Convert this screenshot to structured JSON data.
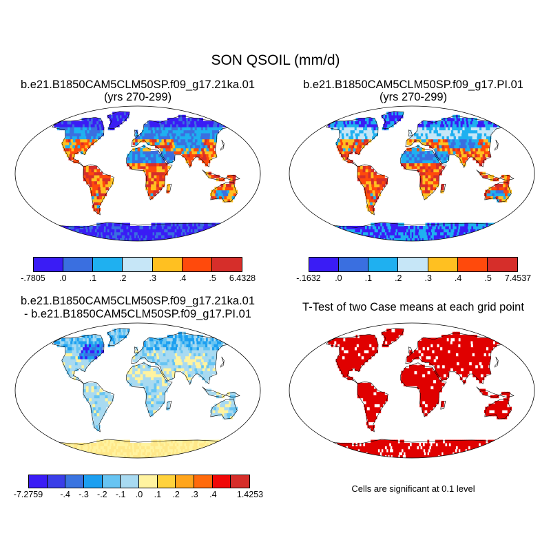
{
  "main_title": "SON QSOIL (mm/d)",
  "panels": {
    "top_left": {
      "title_line1": "b.e21.B1850CAM5CLM50SP.f09_g17.21ka.01",
      "title_line2": "(yrs 270-299)",
      "variant": "21ka"
    },
    "top_right": {
      "title_line1": "b.e21.B1850CAM5CLM50SP.f09_g17.PI.01",
      "title_line2": "(yrs 270-299)",
      "variant": "pi"
    },
    "bottom_left": {
      "title_line1": "b.e21.B1850CAM5CLM50SP.f09_g17.21ka.01",
      "title_line2": "- b.e21.B1850CAM5CLM50SP.f09_g17.PI.01",
      "variant": "diff"
    },
    "bottom_right": {
      "title_line1": "T-Test of two Case means at each grid point",
      "variant": "ttest",
      "note": "Cells are significant at 0.1 level"
    }
  },
  "colorbars": {
    "top_left": {
      "colors": [
        "#3a1cf5",
        "#3a6fe0",
        "#1fb0f0",
        "#c6e6f7",
        "#ffc021",
        "#ff4a0c",
        "#d62e2a"
      ],
      "labels": [
        "-.7805",
        ".0",
        ".1",
        ".2",
        ".3",
        ".4",
        ".5",
        "6.4328"
      ]
    },
    "top_right": {
      "colors": [
        "#3a1cf5",
        "#3a6fe0",
        "#1fb0f0",
        "#c6e6f7",
        "#ffc021",
        "#ff4a0c",
        "#d62e2a"
      ],
      "labels": [
        "-.1632",
        ".0",
        ".1",
        ".2",
        ".3",
        ".4",
        ".5",
        "7.4537"
      ]
    },
    "bottom_left": {
      "colors": [
        "#3a1cf5",
        "#3a3ee8",
        "#3a74e0",
        "#1c9ff0",
        "#67c4f2",
        "#a8daf1",
        "#fff3a0",
        "#ffd23c",
        "#ffa51c",
        "#ff6a0c",
        "#f00808",
        "#d62e2a"
      ],
      "labels": [
        "-7.2759",
        "",
        "-.4",
        "-.3",
        "-.2",
        "-.1",
        ".0",
        ".1",
        ".2",
        ".3",
        ".4",
        "",
        "1.4253"
      ]
    }
  }
}
